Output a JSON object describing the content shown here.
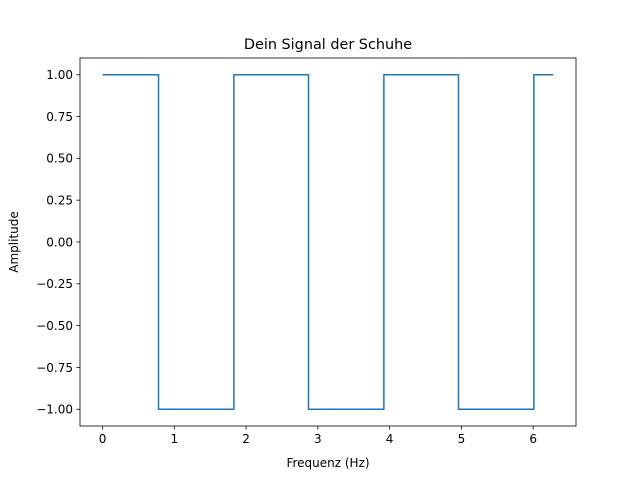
{
  "chart_data": {
    "type": "line",
    "title": "Dein Signal der Schuhe",
    "xlabel": "Frequenz (Hz)",
    "ylabel": "Amplitude",
    "xlim": [
      -0.314,
      6.597
    ],
    "ylim": [
      -1.1,
      1.1
    ],
    "x_ticks": [
      0,
      1,
      2,
      3,
      4,
      5,
      6
    ],
    "x_tick_labels": [
      "0",
      "1",
      "2",
      "3",
      "4",
      "5",
      "6"
    ],
    "y_ticks": [
      1.0,
      0.75,
      0.5,
      0.25,
      0.0,
      -0.25,
      -0.5,
      -0.75,
      -1.0
    ],
    "y_tick_labels": [
      "1.00",
      "0.75",
      "0.50",
      "0.25",
      "0.00",
      "−0.25",
      "−0.50",
      "−0.75",
      "−1.00"
    ],
    "grid": false,
    "line_color": "#1f77b4",
    "series": [
      {
        "x": [
          0,
          0.78,
          0.78,
          1.83,
          1.83,
          2.87,
          2.87,
          3.92,
          3.92,
          4.96,
          4.96,
          6.01,
          6.01,
          6.28
        ],
        "y": [
          1,
          1,
          -1,
          -1,
          1,
          1,
          -1,
          -1,
          1,
          1,
          -1,
          -1,
          1,
          1
        ]
      }
    ]
  }
}
